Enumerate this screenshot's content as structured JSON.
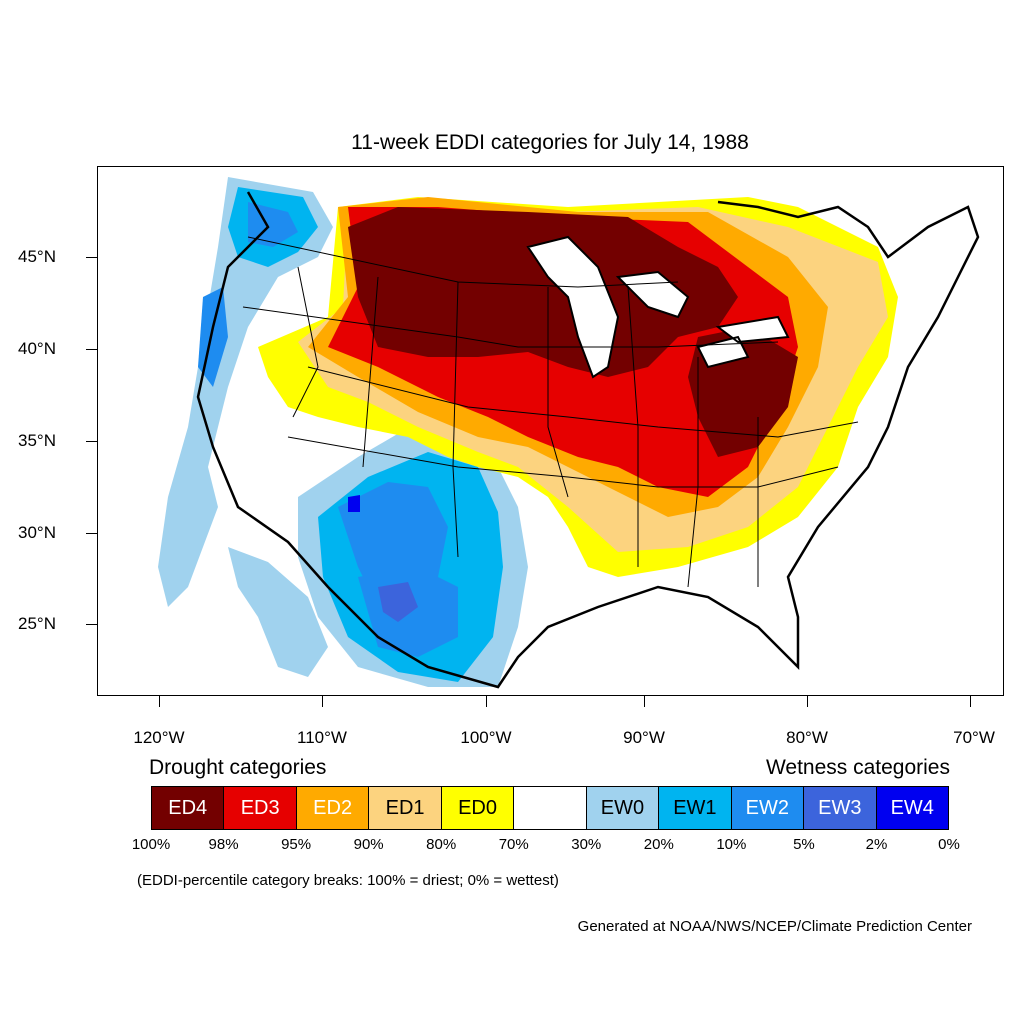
{
  "title": "11-week EDDI categories for July 14, 1988",
  "lat_labels": [
    "45°N",
    "40°N",
    "35°N",
    "30°N",
    "25°N"
  ],
  "lon_labels": [
    "120°W",
    "110°W",
    "100°W",
    "90°W",
    "80°W",
    "70°W"
  ],
  "legend": {
    "drought_heading": "Drought categories",
    "wetness_heading": "Wetness categories",
    "categories": [
      {
        "label": "ED4",
        "color": "#730000",
        "text_color": "#ffffff"
      },
      {
        "label": "ED3",
        "color": "#e60000",
        "text_color": "#ffffff"
      },
      {
        "label": "ED2",
        "color": "#ffaa00",
        "text_color": "#ffffff"
      },
      {
        "label": "ED1",
        "color": "#fcd37f",
        "text_color": "#000000"
      },
      {
        "label": "ED0",
        "color": "#ffff00",
        "text_color": "#000000"
      },
      {
        "label": "",
        "color": "#ffffff",
        "text_color": "#000000"
      },
      {
        "label": "EW0",
        "color": "#a0d2ee",
        "text_color": "#000000"
      },
      {
        "label": "EW1",
        "color": "#00b4f0",
        "text_color": "#000000"
      },
      {
        "label": "EW2",
        "color": "#1e8cf0",
        "text_color": "#ffffff"
      },
      {
        "label": "EW3",
        "color": "#3c64dc",
        "text_color": "#ffffff"
      },
      {
        "label": "EW4",
        "color": "#0000f0",
        "text_color": "#ffffff"
      }
    ],
    "percent_breaks": [
      "100%",
      "98%",
      "95%",
      "90%",
      "80%",
      "70%",
      "30%",
      "20%",
      "10%",
      "5%",
      "2%",
      "0%"
    ]
  },
  "note": "(EDDI-percentile category breaks: 100% = driest; 0% = wettest)",
  "credit": "Generated at NOAA/NWS/NCEP/Climate Prediction Center"
}
